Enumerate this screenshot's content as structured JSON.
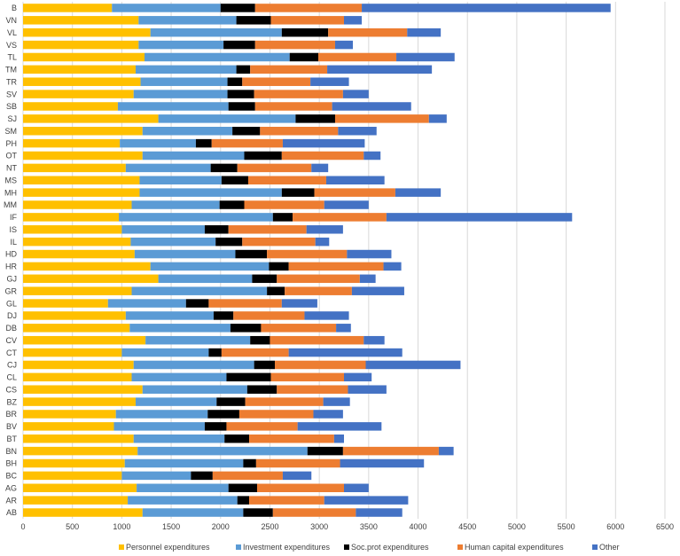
{
  "chart_data": {
    "type": "bar",
    "orientation": "horizontal",
    "stacked": true,
    "title": "",
    "xlabel": "",
    "ylabel": "",
    "xlim": [
      0,
      6500
    ],
    "xticks": [
      0,
      500,
      1000,
      1500,
      2000,
      2500,
      3000,
      3500,
      4000,
      4500,
      5000,
      5500,
      6000,
      6500
    ],
    "grid": true,
    "legend_position": "bottom",
    "categories": [
      "B",
      "VN",
      "VL",
      "VS",
      "TL",
      "TM",
      "TR",
      "SV",
      "SB",
      "SJ",
      "SM",
      "PH",
      "OT",
      "NT",
      "MS",
      "MH",
      "MM",
      "IF",
      "IS",
      "IL",
      "HD",
      "HR",
      "GJ",
      "GR",
      "GL",
      "DJ",
      "DB",
      "CV",
      "CT",
      "CJ",
      "CL",
      "CS",
      "BZ",
      "BR",
      "BV",
      "BT",
      "BN",
      "BH",
      "BC",
      "AG",
      "AR",
      "AB"
    ],
    "series": [
      {
        "name": "Personnel expenditures",
        "color": "#FFC000",
        "values": [
          900,
          1170,
          1290,
          1170,
          1230,
          1140,
          1190,
          1120,
          960,
          1370,
          1210,
          980,
          1210,
          1040,
          1180,
          1180,
          1100,
          970,
          1000,
          1090,
          1130,
          1290,
          1370,
          1100,
          860,
          1040,
          1080,
          1240,
          1000,
          1120,
          1100,
          1210,
          1140,
          940,
          920,
          1120,
          1160,
          1030,
          1000,
          1150,
          1060,
          1210
        ]
      },
      {
        "name": "Investment expenditures",
        "color": "#5B9BD5",
        "values": [
          1100,
          990,
          1330,
          860,
          1470,
          1020,
          880,
          950,
          1120,
          1390,
          910,
          770,
          1030,
          860,
          830,
          1440,
          890,
          1560,
          840,
          860,
          1020,
          1200,
          950,
          1370,
          790,
          890,
          1020,
          1060,
          880,
          1220,
          960,
          1060,
          820,
          930,
          920,
          920,
          1720,
          1200,
          700,
          930,
          1110,
          1020
        ]
      },
      {
        "name": "Soc.prot expenditures",
        "color": "#000000",
        "values": [
          350,
          350,
          470,
          320,
          290,
          140,
          150,
          270,
          270,
          400,
          280,
          160,
          380,
          270,
          270,
          330,
          250,
          200,
          240,
          270,
          320,
          200,
          250,
          180,
          230,
          200,
          310,
          200,
          130,
          210,
          450,
          300,
          290,
          320,
          220,
          250,
          360,
          130,
          220,
          290,
          120,
          300
        ]
      },
      {
        "name": "Human capital expenditures",
        "color": "#ED7D31",
        "values": [
          1080,
          740,
          800,
          810,
          790,
          780,
          690,
          900,
          780,
          950,
          790,
          720,
          830,
          750,
          790,
          820,
          810,
          950,
          790,
          740,
          810,
          960,
          840,
          680,
          740,
          720,
          760,
          950,
          680,
          920,
          740,
          720,
          790,
          750,
          720,
          860,
          970,
          850,
          710,
          880,
          760,
          840
        ]
      },
      {
        "name": "Other",
        "color": "#4472C4",
        "values": [
          2520,
          180,
          340,
          180,
          590,
          1060,
          390,
          260,
          800,
          180,
          390,
          830,
          170,
          170,
          590,
          460,
          450,
          1880,
          370,
          140,
          450,
          180,
          160,
          530,
          360,
          450,
          150,
          210,
          1150,
          960,
          280,
          390,
          270,
          300,
          850,
          100,
          150,
          850,
          290,
          250,
          850,
          470
        ]
      }
    ]
  }
}
